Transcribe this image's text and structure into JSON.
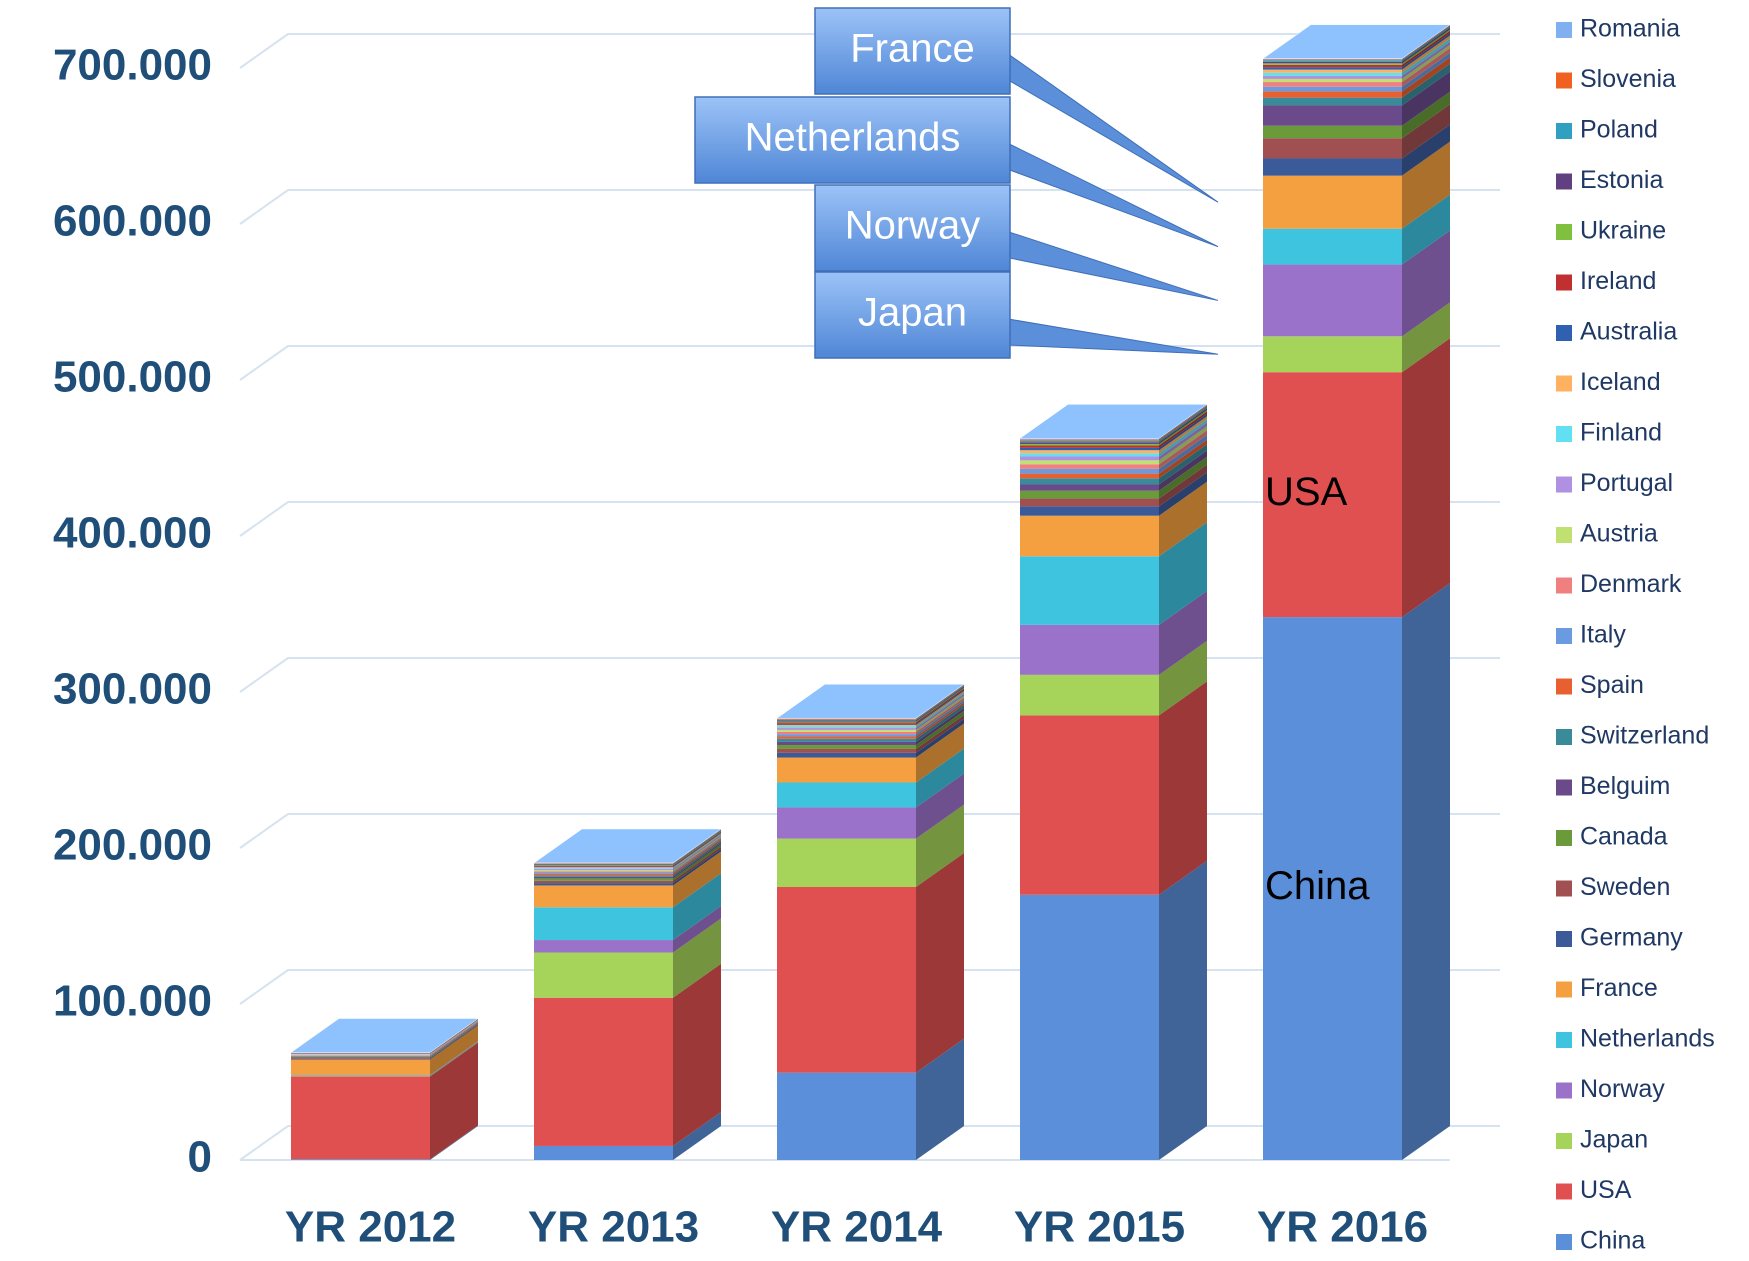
{
  "chart_data": {
    "type": "bar3d_stacked",
    "categories": [
      "YR 2012",
      "YR 2013",
      "YR 2014",
      "YR 2015",
      "YR 2016"
    ],
    "ylim": [
      0,
      700000
    ],
    "yticks": [
      0,
      {
        "value": 100000,
        "label": "100.000"
      },
      {
        "value": 200000,
        "label": "200.000"
      },
      {
        "value": 300000,
        "label": "300.000"
      },
      {
        "value": 400000,
        "label": "400.000"
      },
      {
        "value": 500000,
        "label": "500.000"
      },
      {
        "value": 600000,
        "label": "600.000"
      },
      {
        "value": 700000,
        "label": "700.000"
      }
    ],
    "grid": true,
    "legend": "right",
    "series": [
      {
        "name": "China",
        "color": "#5b8fd9",
        "values": [
          500,
          9000,
          56000,
          170000,
          348000
        ]
      },
      {
        "name": "USA",
        "color": "#e05050",
        "values": [
          53000,
          95000,
          119000,
          115000,
          157000
        ]
      },
      {
        "name": "Japan",
        "color": "#a6d45a",
        "values": [
          300,
          29000,
          31000,
          26000,
          23000
        ]
      },
      {
        "name": "Norway",
        "color": "#9b72c9",
        "values": [
          300,
          8000,
          20000,
          32000,
          46000
        ]
      },
      {
        "name": "Netherlands",
        "color": "#3fc4e0",
        "values": [
          300,
          21000,
          16000,
          44000,
          23000
        ]
      },
      {
        "name": "France",
        "color": "#f5a040",
        "values": [
          10000,
          14000,
          16000,
          26000,
          34000
        ]
      },
      {
        "name": "Germany",
        "color": "#3a5a9a",
        "values": [
          500,
          1500,
          3000,
          6000,
          11000
        ]
      },
      {
        "name": "Sweden",
        "color": "#a05050",
        "values": [
          500,
          1500,
          2500,
          5000,
          13000
        ]
      },
      {
        "name": "Canada",
        "color": "#6a9a3a",
        "values": [
          300,
          1500,
          2500,
          5000,
          8000
        ]
      },
      {
        "name": "Belguim",
        "color": "#6a4a8a",
        "values": [
          300,
          1000,
          2000,
          4000,
          13000
        ]
      },
      {
        "name": "Switzerland",
        "color": "#3a8a9a",
        "values": [
          300,
          1000,
          2000,
          4000,
          5000
        ]
      },
      {
        "name": "Spain",
        "color": "#e86030",
        "values": [
          300,
          1000,
          1500,
          3000,
          4000
        ]
      },
      {
        "name": "Italy",
        "color": "#6a9ae0",
        "values": [
          300,
          800,
          1500,
          3000,
          3000
        ]
      },
      {
        "name": "Denmark",
        "color": "#f08080",
        "values": [
          300,
          800,
          1500,
          3000,
          3000
        ]
      },
      {
        "name": "Austria",
        "color": "#c0e070",
        "values": [
          200,
          700,
          1200,
          2500,
          2000
        ]
      },
      {
        "name": "Portugal",
        "color": "#b090e0",
        "values": [
          200,
          700,
          1200,
          2500,
          2000
        ]
      },
      {
        "name": "Finland",
        "color": "#60e0f0",
        "values": [
          200,
          600,
          1000,
          2000,
          2000
        ]
      },
      {
        "name": "Iceland",
        "color": "#ffb060",
        "values": [
          200,
          600,
          1000,
          2000,
          2000
        ]
      },
      {
        "name": "Australia",
        "color": "#3060b0",
        "values": [
          200,
          500,
          800,
          1500,
          1500
        ]
      },
      {
        "name": "Ireland",
        "color": "#c03030",
        "values": [
          200,
          500,
          800,
          1500,
          1500
        ]
      },
      {
        "name": "Ukraine",
        "color": "#80c040",
        "values": [
          100,
          400,
          600,
          1000,
          1000
        ]
      },
      {
        "name": "Estonia",
        "color": "#604080",
        "values": [
          100,
          400,
          600,
          1000,
          1000
        ]
      },
      {
        "name": "Poland",
        "color": "#30a0c0",
        "values": [
          100,
          300,
          500,
          1000,
          1000
        ]
      },
      {
        "name": "Slovenia",
        "color": "#f06020",
        "values": [
          100,
          300,
          500,
          800,
          500
        ]
      },
      {
        "name": "Romania",
        "color": "#80b0f0",
        "values": [
          100,
          300,
          500,
          800,
          500
        ]
      }
    ]
  }
}
